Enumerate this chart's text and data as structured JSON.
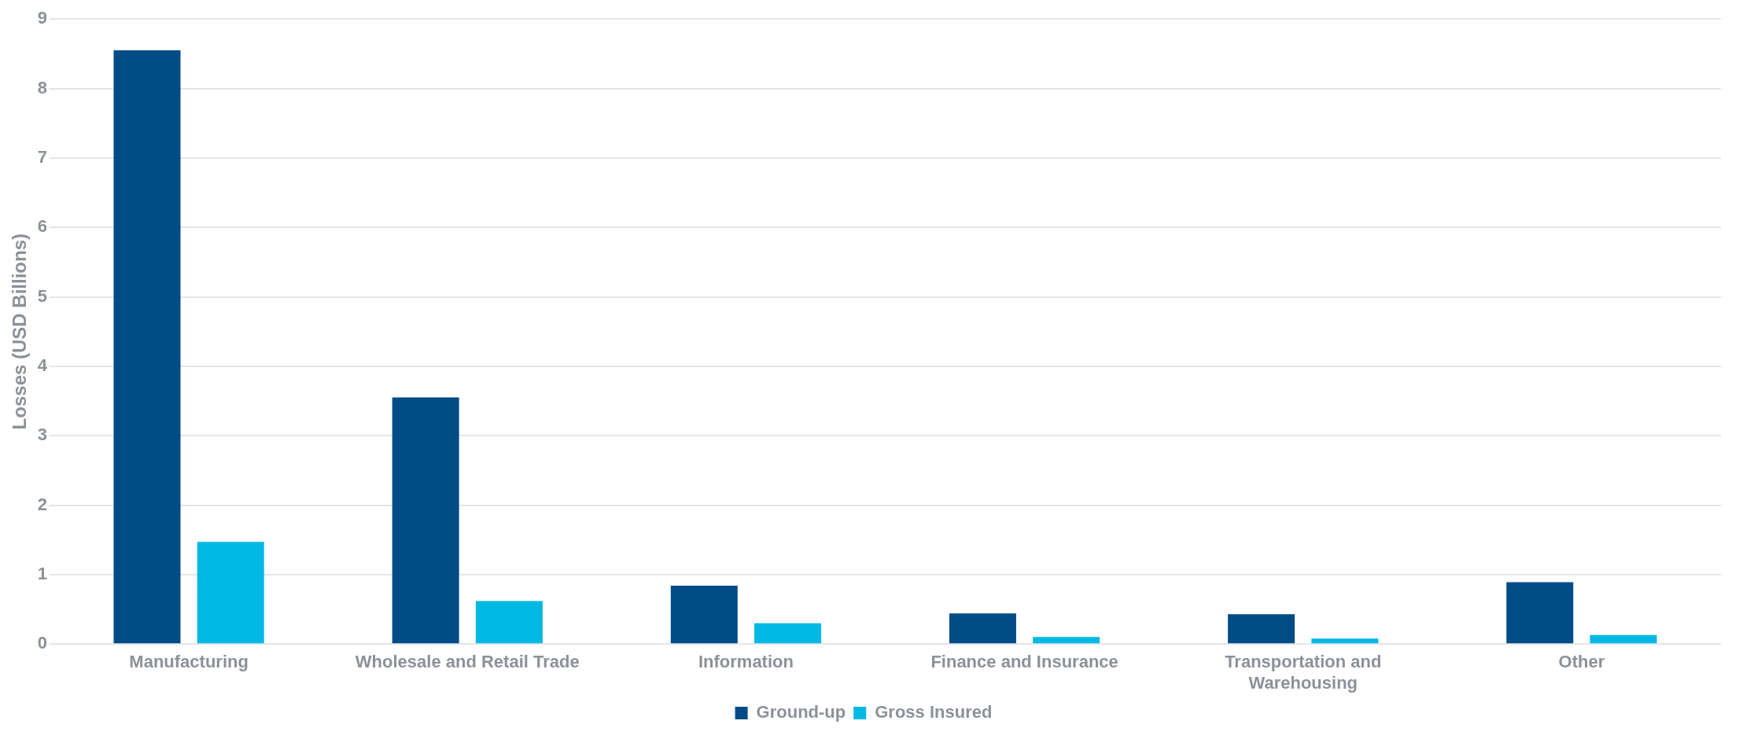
{
  "chart_data": {
    "type": "bar",
    "ylabel": "Losses (USD Billions)",
    "categories": [
      "Manufacturing",
      "Wholesale and Retail Trade",
      "Information",
      "Finance and Insurance",
      "Transportation and Warehousing",
      "Other"
    ],
    "series": [
      {
        "name": "Ground-up",
        "color": "#004c86",
        "values": [
          8.55,
          3.55,
          0.84,
          0.44,
          0.43,
          0.89
        ]
      },
      {
        "name": "Gross Insured",
        "color": "#00b8e4",
        "values": [
          1.47,
          0.62,
          0.3,
          0.1,
          0.08,
          0.13
        ]
      }
    ],
    "ylim": [
      0,
      9
    ],
    "yticks": [
      0,
      1,
      2,
      3,
      4,
      5,
      6,
      7,
      8,
      9
    ],
    "grid": "y",
    "legend": "bottom"
  }
}
